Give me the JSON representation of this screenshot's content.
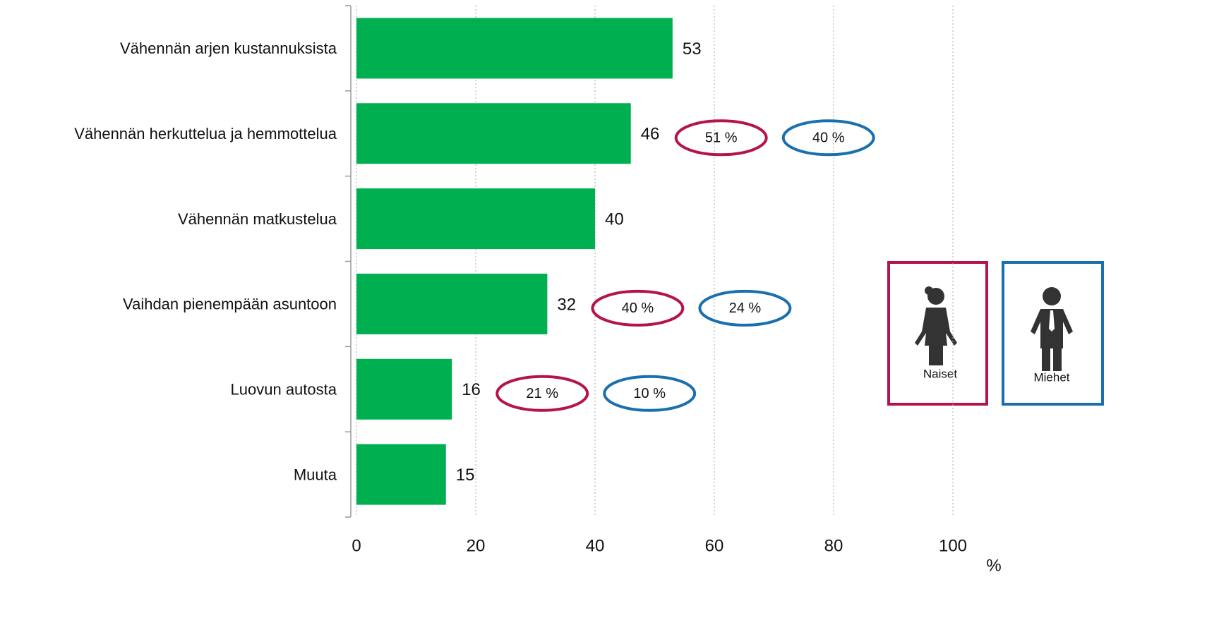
{
  "chart_data": {
    "type": "bar",
    "orientation": "horizontal",
    "categories": [
      "Vähennän arjen kustannuksista",
      "Vähennän herkuttelua ja hemmottelua",
      "Vähennän matkustelua",
      "Vaihdan pienempään asuntoon",
      "Luovun autosta",
      "Muuta"
    ],
    "values": [
      53,
      46,
      40,
      32,
      16,
      15
    ],
    "color": "#00b050",
    "series": [
      {
        "name": "Naiset",
        "color": "#b5134b",
        "values": [
          null,
          51,
          null,
          40,
          21,
          null
        ],
        "value_labels": [
          null,
          "51 %",
          null,
          "40 %",
          "21 %",
          null
        ]
      },
      {
        "name": "Miehet",
        "color": "#1a6fae",
        "values": [
          null,
          40,
          null,
          24,
          10,
          null
        ],
        "value_labels": [
          null,
          "40 %",
          null,
          "24 %",
          "10 %",
          null
        ]
      }
    ],
    "xlim": [
      0,
      100
    ],
    "xticks": [
      0,
      20,
      40,
      60,
      80,
      100
    ],
    "xlabel": "%",
    "grid": true
  }
}
